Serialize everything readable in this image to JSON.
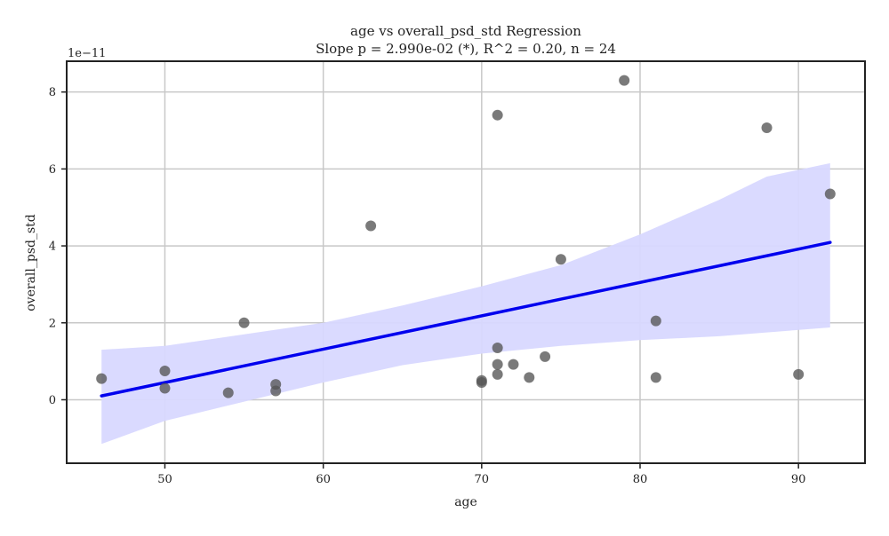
{
  "chart_data": {
    "type": "scatter",
    "title": "age vs overall_psd_std Regression",
    "subtitle": "Slope p = 2.990e-02 (*), R^2 = 0.20, n = 24",
    "xlabel": "age",
    "ylabel": "overall_psd_std",
    "y_scale_label": "1e−11",
    "xlim": [
      43.8,
      94.2
    ],
    "ylim": [
      -1.65,
      8.8
    ],
    "x_ticks": [
      50,
      60,
      70,
      80,
      90
    ],
    "x_tick_labels": [
      "50",
      "60",
      "70",
      "80",
      "90"
    ],
    "y_ticks": [
      0,
      2,
      4,
      6,
      8
    ],
    "y_tick_labels": [
      "0",
      "2",
      "4",
      "6",
      "8"
    ],
    "grid": true,
    "points": [
      {
        "x": 46,
        "y": 0.55
      },
      {
        "x": 50,
        "y": 0.75
      },
      {
        "x": 50,
        "y": 0.3
      },
      {
        "x": 54,
        "y": 0.18
      },
      {
        "x": 55,
        "y": 2.0
      },
      {
        "x": 57,
        "y": 0.4
      },
      {
        "x": 57,
        "y": 0.23
      },
      {
        "x": 63,
        "y": 4.52
      },
      {
        "x": 70,
        "y": 0.5
      },
      {
        "x": 70,
        "y": 0.45
      },
      {
        "x": 71,
        "y": 7.4
      },
      {
        "x": 71,
        "y": 1.35
      },
      {
        "x": 71,
        "y": 0.92
      },
      {
        "x": 71,
        "y": 0.66
      },
      {
        "x": 72,
        "y": 0.92
      },
      {
        "x": 73,
        "y": 0.58
      },
      {
        "x": 74,
        "y": 1.12
      },
      {
        "x": 75,
        "y": 3.65
      },
      {
        "x": 79,
        "y": 8.3
      },
      {
        "x": 81,
        "y": 2.05
      },
      {
        "x": 81,
        "y": 0.58
      },
      {
        "x": 88,
        "y": 7.07
      },
      {
        "x": 90,
        "y": 0.66
      },
      {
        "x": 92,
        "y": 5.35
      }
    ],
    "regression_line": {
      "x": [
        46,
        92
      ],
      "y": [
        0.1,
        4.09
      ]
    },
    "confidence_band": {
      "x": [
        46,
        50,
        55,
        60,
        65,
        70,
        75,
        80,
        85,
        88,
        92
      ],
      "upper": [
        1.3,
        1.4,
        1.7,
        2.0,
        2.45,
        2.95,
        3.5,
        4.3,
        5.2,
        5.8,
        6.15
      ],
      "lower": [
        -1.15,
        -0.55,
        -0.05,
        0.45,
        0.9,
        1.2,
        1.4,
        1.55,
        1.65,
        1.75,
        1.88
      ]
    },
    "colors": {
      "points": "#555555",
      "regression_line": "#0000ee",
      "confidence_band": "#d8d8ff",
      "grid": "#c8c8c8",
      "axes": "#222222"
    }
  }
}
